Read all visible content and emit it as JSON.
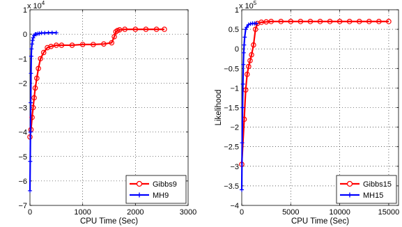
{
  "chart_data": [
    {
      "type": "line",
      "multiplier": "x 10",
      "multiplier_exp": "4",
      "xlabel": "CPU Time (Sec)",
      "ylabel": "",
      "xlim": [
        0,
        3000
      ],
      "ylim": [
        -7,
        1
      ],
      "xticks": [
        0,
        1000,
        2000,
        3000
      ],
      "yticks": [
        -7,
        -6,
        -5,
        -4,
        -3,
        -2,
        -1,
        0,
        1
      ],
      "grid": true,
      "legend_position": "bottom-right",
      "series": [
        {
          "name": "Gibbs9",
          "color": "#ff0000",
          "marker": "circle",
          "x": [
            0,
            20,
            40,
            60,
            80,
            100,
            130,
            160,
            200,
            260,
            330,
            400,
            500,
            600,
            800,
            1000,
            1200,
            1400,
            1550,
            1600,
            1630,
            1660,
            1700,
            1800,
            2000,
            2200,
            2400,
            2550
          ],
          "y": [
            -4.2,
            -3.9,
            -3.4,
            -3.0,
            -2.6,
            -2.2,
            -1.8,
            -1.4,
            -1.0,
            -0.75,
            -0.55,
            -0.5,
            -0.45,
            -0.45,
            -0.45,
            -0.42,
            -0.42,
            -0.4,
            -0.35,
            -0.1,
            0.1,
            0.15,
            0.18,
            0.2,
            0.2,
            0.2,
            0.2,
            0.2
          ]
        },
        {
          "name": "MH9",
          "color": "#0000ff",
          "marker": "plus",
          "x": [
            0,
            5,
            10,
            15,
            20,
            25,
            30,
            40,
            50,
            60,
            80,
            100,
            120,
            150,
            180,
            220,
            280,
            350,
            420,
            500
          ],
          "y": [
            -6.4,
            -5.2,
            -4.0,
            -2.8,
            -1.6,
            -0.9,
            -0.6,
            -0.4,
            -0.25,
            -0.15,
            -0.05,
            0.0,
            0.0,
            0.02,
            0.03,
            0.05,
            0.05,
            0.06,
            0.06,
            0.06
          ]
        }
      ]
    },
    {
      "type": "line",
      "multiplier": "x 10",
      "multiplier_exp": "5",
      "xlabel": "CPU Time (Sec)",
      "ylabel": "Likelihood",
      "xlim": [
        0,
        16000
      ],
      "ylim": [
        -4,
        1
      ],
      "xticks": [
        0,
        5000,
        10000,
        15000
      ],
      "yticks": [
        -4,
        -3.5,
        -3,
        -2.5,
        -2,
        -1.5,
        -1,
        -0.5,
        0,
        0.5,
        1
      ],
      "grid": true,
      "legend_position": "bottom-right",
      "series": [
        {
          "name": "Gibbs15",
          "color": "#ff0000",
          "marker": "circle",
          "x": [
            0,
            250,
            400,
            550,
            700,
            850,
            1000,
            1200,
            1400,
            1600,
            2000,
            2500,
            3000,
            4000,
            5000,
            6000,
            7000,
            8000,
            9000,
            10000,
            11000,
            12000,
            13000,
            14000,
            15000
          ],
          "y": [
            -2.95,
            -1.8,
            -1.05,
            -0.65,
            -0.45,
            -0.3,
            -0.15,
            0.1,
            0.5,
            0.65,
            0.68,
            0.69,
            0.7,
            0.7,
            0.7,
            0.7,
            0.7,
            0.7,
            0.7,
            0.7,
            0.7,
            0.7,
            0.7,
            0.7,
            0.7
          ]
        },
        {
          "name": "MH15",
          "color": "#0000ff",
          "marker": "plus",
          "x": [
            0,
            40,
            80,
            120,
            160,
            200,
            240,
            300,
            400,
            500,
            700,
            900,
            1100,
            1300,
            1500
          ],
          "y": [
            -3.6,
            -2.4,
            -1.5,
            -0.9,
            -0.4,
            -0.1,
            0.1,
            0.3,
            0.5,
            0.55,
            0.62,
            0.64,
            0.65,
            0.65,
            0.65
          ]
        }
      ]
    }
  ]
}
